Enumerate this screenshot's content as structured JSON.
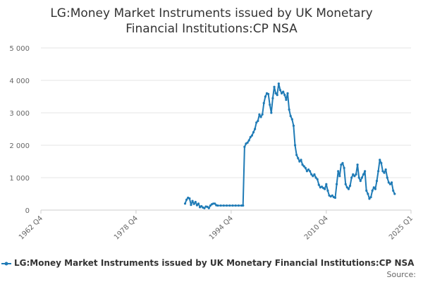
{
  "chart_data": {
    "type": "line",
    "title": [
      "LG:Money Market Instruments issued by UK Monetary",
      "Financial Institutions:CP NSA"
    ],
    "series": [
      {
        "name": "LG:Money Market Instruments issued by UK Monetary Financial Institutions:CP NSA",
        "color": "#1f7bb6",
        "points": [
          [
            1987.0,
            200
          ],
          [
            1987.25,
            320
          ],
          [
            1987.5,
            380
          ],
          [
            1987.75,
            360
          ],
          [
            1988.0,
            160
          ],
          [
            1988.25,
            280
          ],
          [
            1988.5,
            190
          ],
          [
            1988.75,
            250
          ],
          [
            1989.0,
            150
          ],
          [
            1989.25,
            200
          ],
          [
            1989.5,
            90
          ],
          [
            1989.75,
            120
          ],
          [
            1990.0,
            80
          ],
          [
            1990.25,
            60
          ],
          [
            1990.5,
            110
          ],
          [
            1990.75,
            100
          ],
          [
            1991.0,
            60
          ],
          [
            1991.25,
            140
          ],
          [
            1991.5,
            180
          ],
          [
            1991.75,
            200
          ],
          [
            1992.0,
            200
          ],
          [
            1992.25,
            150
          ],
          [
            1992.5,
            140
          ],
          [
            1993.0,
            140
          ],
          [
            1993.5,
            140
          ],
          [
            1994.0,
            140
          ],
          [
            1994.5,
            140
          ],
          [
            1995.0,
            140
          ],
          [
            1995.5,
            140
          ],
          [
            1996.0,
            140
          ],
          [
            1996.5,
            140
          ],
          [
            1996.75,
            140
          ],
          [
            1997.0,
            1950
          ],
          [
            1997.25,
            2050
          ],
          [
            1997.5,
            2080
          ],
          [
            1997.75,
            2150
          ],
          [
            1998.0,
            2250
          ],
          [
            1998.25,
            2300
          ],
          [
            1998.5,
            2400
          ],
          [
            1998.75,
            2500
          ],
          [
            1999.0,
            2700
          ],
          [
            1999.25,
            2750
          ],
          [
            1999.5,
            2950
          ],
          [
            1999.75,
            2870
          ],
          [
            2000.0,
            2950
          ],
          [
            2000.25,
            3300
          ],
          [
            2000.5,
            3500
          ],
          [
            2000.75,
            3600
          ],
          [
            2001.0,
            3580
          ],
          [
            2001.25,
            3250
          ],
          [
            2001.5,
            3000
          ],
          [
            2001.75,
            3450
          ],
          [
            2002.0,
            3800
          ],
          [
            2002.25,
            3600
          ],
          [
            2002.5,
            3550
          ],
          [
            2002.75,
            3900
          ],
          [
            2003.0,
            3700
          ],
          [
            2003.25,
            3600
          ],
          [
            2003.5,
            3650
          ],
          [
            2003.75,
            3550
          ],
          [
            2004.0,
            3400
          ],
          [
            2004.25,
            3600
          ],
          [
            2004.5,
            3100
          ],
          [
            2004.75,
            2900
          ],
          [
            2005.0,
            2800
          ],
          [
            2005.25,
            2600
          ],
          [
            2005.5,
            2000
          ],
          [
            2005.75,
            1700
          ],
          [
            2006.0,
            1600
          ],
          [
            2006.25,
            1500
          ],
          [
            2006.5,
            1550
          ],
          [
            2006.75,
            1400
          ],
          [
            2007.0,
            1350
          ],
          [
            2007.25,
            1300
          ],
          [
            2007.5,
            1200
          ],
          [
            2007.75,
            1250
          ],
          [
            2008.0,
            1200
          ],
          [
            2008.25,
            1100
          ],
          [
            2008.5,
            1050
          ],
          [
            2008.75,
            1100
          ],
          [
            2009.0,
            1000
          ],
          [
            2009.25,
            950
          ],
          [
            2009.5,
            780
          ],
          [
            2009.75,
            700
          ],
          [
            2010.0,
            720
          ],
          [
            2010.25,
            680
          ],
          [
            2010.5,
            650
          ],
          [
            2010.75,
            800
          ],
          [
            2011.0,
            600
          ],
          [
            2011.25,
            450
          ],
          [
            2011.5,
            420
          ],
          [
            2011.75,
            450
          ],
          [
            2012.0,
            400
          ],
          [
            2012.25,
            380
          ],
          [
            2012.5,
            800
          ],
          [
            2012.75,
            1200
          ],
          [
            2013.0,
            1050
          ],
          [
            2013.25,
            1400
          ],
          [
            2013.5,
            1450
          ],
          [
            2013.75,
            1300
          ],
          [
            2014.0,
            800
          ],
          [
            2014.25,
            700
          ],
          [
            2014.5,
            650
          ],
          [
            2014.75,
            750
          ],
          [
            2015.0,
            1000
          ],
          [
            2015.25,
            1100
          ],
          [
            2015.5,
            1050
          ],
          [
            2015.75,
            1100
          ],
          [
            2016.0,
            1400
          ],
          [
            2016.25,
            1000
          ],
          [
            2016.5,
            900
          ],
          [
            2016.75,
            1000
          ],
          [
            2017.0,
            1100
          ],
          [
            2017.25,
            1200
          ],
          [
            2017.5,
            600
          ],
          [
            2017.75,
            500
          ],
          [
            2018.0,
            350
          ],
          [
            2018.25,
            400
          ],
          [
            2018.5,
            600
          ],
          [
            2018.75,
            700
          ],
          [
            2019.0,
            650
          ],
          [
            2019.25,
            900
          ],
          [
            2019.5,
            1200
          ],
          [
            2019.75,
            1550
          ],
          [
            2020.0,
            1450
          ],
          [
            2020.25,
            1200
          ],
          [
            2020.5,
            1150
          ],
          [
            2020.75,
            1250
          ],
          [
            2021.0,
            1000
          ],
          [
            2021.25,
            850
          ],
          [
            2021.5,
            800
          ],
          [
            2021.75,
            850
          ],
          [
            2022.0,
            600
          ],
          [
            2022.25,
            500
          ]
        ]
      }
    ],
    "x_ticks": [
      {
        "label": "1962 Q4",
        "value": 1962.75
      },
      {
        "label": "1978 Q4",
        "value": 1978.75
      },
      {
        "label": "1994 Q4",
        "value": 1994.75
      },
      {
        "label": "2010 Q4",
        "value": 2010.75
      },
      {
        "label": "2025 Q1",
        "value": 2025.0
      }
    ],
    "xlim": [
      1962.75,
      2025.0
    ],
    "y_ticks": [
      {
        "label": "0",
        "value": 0
      },
      {
        "label": "1 000",
        "value": 1000
      },
      {
        "label": "2 000",
        "value": 2000
      },
      {
        "label": "3 000",
        "value": 3000
      },
      {
        "label": "4 000",
        "value": 4000
      },
      {
        "label": "5 000",
        "value": 5000
      }
    ],
    "ylim": [
      0,
      5000
    ],
    "grid": "horizontal",
    "legend_position": "bottom",
    "source_label": "Source:"
  }
}
